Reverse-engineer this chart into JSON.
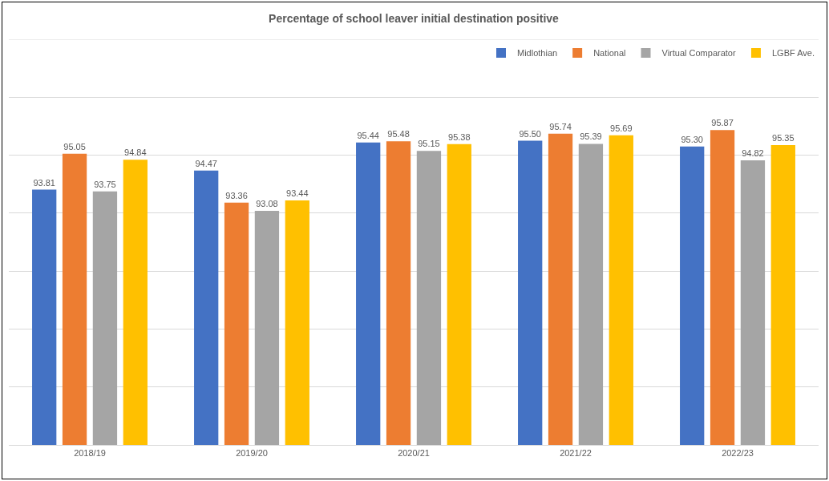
{
  "chart_data": {
    "type": "bar",
    "title": "Percentage of school leaver initial destination positive",
    "categories": [
      "2018/19",
      "2019/20",
      "2020/21",
      "2021/22",
      "2022/23"
    ],
    "series": [
      {
        "name": "Midlothian",
        "color": "#4472c4",
        "values": [
          93.81,
          94.47,
          95.44,
          95.5,
          95.3
        ],
        "value_labels": [
          "93.81",
          "94.47",
          "95.44",
          "95.50",
          "95.30"
        ]
      },
      {
        "name": "National",
        "color": "#ed7d31",
        "values": [
          95.05,
          93.36,
          95.48,
          95.74,
          95.87
        ],
        "value_labels": [
          "95.05",
          "93.36",
          "95.48",
          "95.74",
          "95.87"
        ]
      },
      {
        "name": "Virtual Comparator",
        "color": "#a5a5a5",
        "values": [
          93.75,
          93.08,
          95.15,
          95.39,
          94.82
        ],
        "value_labels": [
          "93.75",
          "93.08",
          "95.15",
          "95.39",
          "94.82"
        ]
      },
      {
        "name": "LGBF Ave.",
        "color": "#ffc000",
        "values": [
          94.84,
          93.44,
          95.38,
          95.69,
          95.35
        ],
        "value_labels": [
          "94.84",
          "93.44",
          "95.38",
          "95.69",
          "95.35"
        ]
      }
    ],
    "ylim": [
      85,
      99
    ],
    "yticks": [
      {
        "value": 85,
        "label": null
      },
      {
        "value": 87,
        "label": null
      },
      {
        "value": 89,
        "label": null
      },
      {
        "value": 91,
        "label": null
      },
      {
        "value": 93,
        "label": null
      },
      {
        "value": 95,
        "label": null
      },
      {
        "value": 97,
        "label": null
      },
      {
        "value": 99,
        "label": null
      }
    ],
    "tick_labels": "x",
    "grid": "y",
    "legend": "top right"
  }
}
